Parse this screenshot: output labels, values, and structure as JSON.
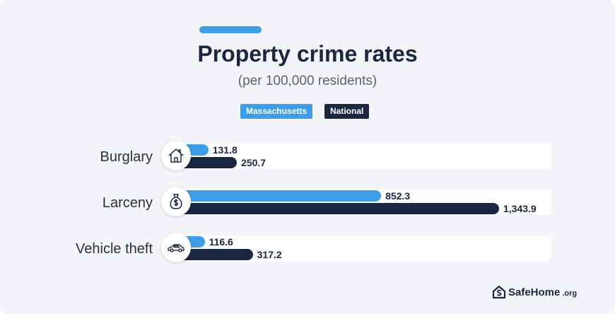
{
  "chart_data": {
    "type": "bar",
    "orientation": "horizontal",
    "title": "Property crime rates",
    "subtitle": "(per 100,000 residents)",
    "categories": [
      "Burglary",
      "Larceny",
      "Vehicle theft"
    ],
    "series": [
      {
        "name": "Massachusetts",
        "color": "#3e9ee8",
        "values": [
          131.8,
          852.3,
          116.6
        ],
        "labels": [
          "131.8",
          "852.3",
          "116.6"
        ]
      },
      {
        "name": "National",
        "color": "#1b2640",
        "values": [
          250.7,
          1343.9,
          317.2
        ],
        "labels": [
          "250.7",
          "1,343.9",
          "317.2"
        ]
      }
    ],
    "xlim": [
      0,
      1520
    ],
    "legend": "top-center",
    "grid": false
  },
  "icons": [
    "house-icon",
    "money-bag-icon",
    "car-icon"
  ],
  "brand": {
    "name": "SafeHome",
    "suffix": ".org"
  }
}
